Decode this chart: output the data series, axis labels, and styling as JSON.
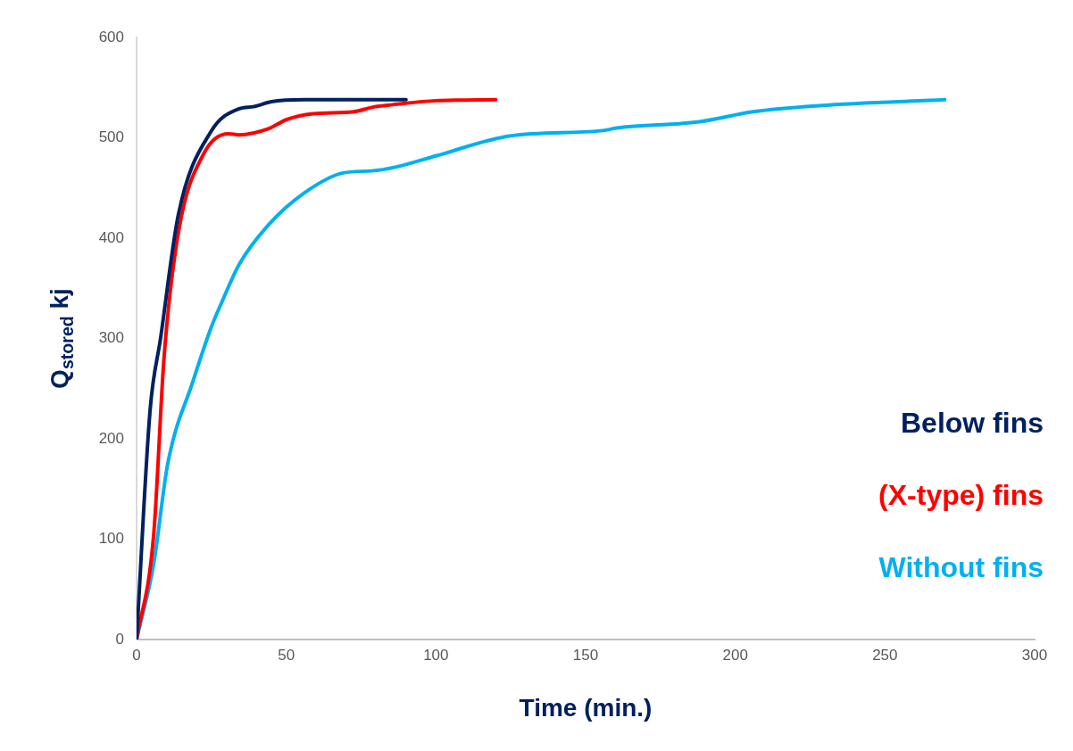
{
  "chart_data": {
    "type": "line",
    "xlabel": "Time (min.)",
    "ylabel": "Q$_{stored}$ kj",
    "xlim": [
      0,
      300
    ],
    "xticks": [
      0,
      50,
      100,
      150,
      200,
      250,
      300
    ],
    "ylim": [
      0,
      600
    ],
    "yticks": [
      0,
      100,
      200,
      300,
      400,
      500,
      600
    ],
    "grid": false,
    "legend": "right",
    "marker": "none",
    "line_style": "solid",
    "series": [
      {
        "name": "Below fins",
        "color": "#002060",
        "x": [
          0,
          4.5,
          8,
          14,
          24.8,
          34.3,
          39,
          45,
          56,
          90
        ],
        "values": [
          0,
          228,
          300,
          424,
          506,
          529,
          531,
          536,
          538,
          538
        ]
      },
      {
        "name": "(X-type) fins",
        "color": "#ff0000",
        "x": [
          0,
          5.7,
          9.2,
          14,
          22.4,
          30.7,
          34.3,
          44,
          50,
          59,
          72.5,
          79.6,
          85.6,
          100,
          120
        ],
        "values": [
          0,
          104,
          282,
          406,
          484,
          504,
          503,
          509,
          518,
          524,
          526,
          531,
          533,
          537,
          538
        ]
      },
      {
        "name": "Without fins",
        "color": "#00b0f0",
        "x": [
          0,
          5.7,
          10.4,
          18.8,
          24.8,
          28.3,
          34.3,
          44,
          56,
          69,
          78.4,
          86.8,
          100,
          125,
          155,
          161,
          188,
          206,
          228,
          270
        ],
        "values": [
          0,
          75,
          175,
          257,
          310,
          335,
          374,
          413,
          445,
          465,
          467,
          471,
          482,
          502,
          507,
          510,
          516,
          526,
          532,
          538
        ]
      }
    ]
  }
}
